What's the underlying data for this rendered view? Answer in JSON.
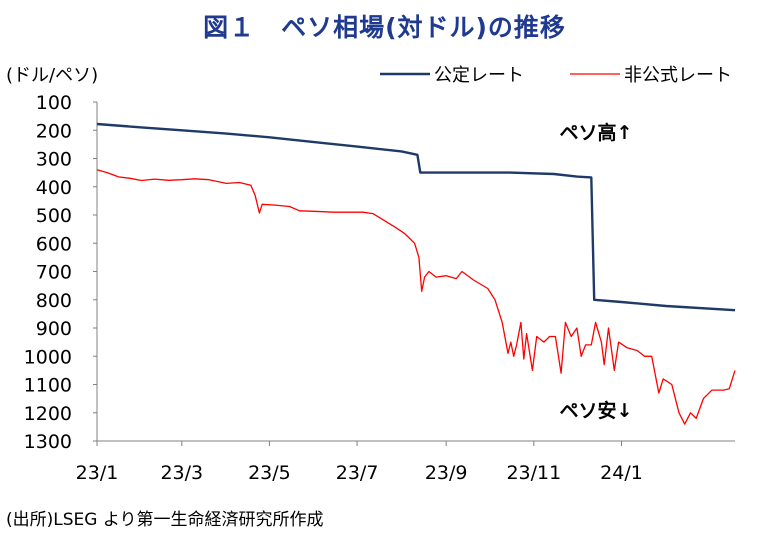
{
  "chart_data": {
    "type": "line",
    "title": "図１　ペソ相場(対ドル)の推移",
    "ylabel": "(ドル/ペソ)",
    "y_inverted": true,
    "ylim": [
      100,
      1300
    ],
    "yticks": [
      100,
      200,
      300,
      400,
      500,
      600,
      700,
      800,
      900,
      1000,
      1100,
      1200,
      1300
    ],
    "x_range": [
      "2023-01-01",
      "2024-03-20"
    ],
    "xticks": [
      {
        "label": "23/1",
        "date": "2023-01-01"
      },
      {
        "label": "23/3",
        "date": "2023-03-01"
      },
      {
        "label": "23/5",
        "date": "2023-05-01"
      },
      {
        "label": "23/7",
        "date": "2023-07-01"
      },
      {
        "label": "23/9",
        "date": "2023-09-01"
      },
      {
        "label": "23/11",
        "date": "2023-11-01"
      },
      {
        "label": "24/1",
        "date": "2024-01-01"
      }
    ],
    "grid": false,
    "legend_position": "top-right",
    "annotations": [
      {
        "text": "ペソ高↑",
        "position": "upper-right"
      },
      {
        "text": "ペソ安↓",
        "position": "lower-right"
      }
    ],
    "source_note": "(出所)LSEG より第一生命経済研究所作成",
    "series": [
      {
        "name": "公定レート",
        "color": "#1f3a68",
        "points": [
          [
            "2023-01-01",
            178
          ],
          [
            "2023-02-01",
            190
          ],
          [
            "2023-03-01",
            200
          ],
          [
            "2023-04-01",
            212
          ],
          [
            "2023-05-01",
            225
          ],
          [
            "2023-06-01",
            242
          ],
          [
            "2023-07-01",
            258
          ],
          [
            "2023-08-01",
            275
          ],
          [
            "2023-08-12",
            287
          ],
          [
            "2023-08-14",
            350
          ],
          [
            "2023-09-15",
            350
          ],
          [
            "2023-10-15",
            350
          ],
          [
            "2023-11-15",
            355
          ],
          [
            "2023-12-01",
            364
          ],
          [
            "2023-12-11",
            367
          ],
          [
            "2023-12-13",
            800
          ],
          [
            "2024-01-01",
            808
          ],
          [
            "2024-02-01",
            822
          ],
          [
            "2024-03-20",
            837
          ]
        ]
      },
      {
        "name": "非公式レート",
        "color": "#ff0000",
        "points": [
          [
            "2023-01-01",
            340
          ],
          [
            "2023-01-08",
            350
          ],
          [
            "2023-01-16",
            365
          ],
          [
            "2023-01-24",
            370
          ],
          [
            "2023-02-01",
            378
          ],
          [
            "2023-02-10",
            373
          ],
          [
            "2023-02-20",
            377
          ],
          [
            "2023-03-01",
            375
          ],
          [
            "2023-03-10",
            372
          ],
          [
            "2023-03-20",
            375
          ],
          [
            "2023-04-01",
            388
          ],
          [
            "2023-04-10",
            385
          ],
          [
            "2023-04-18",
            395
          ],
          [
            "2023-04-21",
            430
          ],
          [
            "2023-04-24",
            493
          ],
          [
            "2023-04-26",
            462
          ],
          [
            "2023-05-05",
            465
          ],
          [
            "2023-05-15",
            470
          ],
          [
            "2023-05-22",
            485
          ],
          [
            "2023-06-01",
            487
          ],
          [
            "2023-06-15",
            490
          ],
          [
            "2023-06-25",
            490
          ],
          [
            "2023-07-05",
            490
          ],
          [
            "2023-07-12",
            495
          ],
          [
            "2023-07-20",
            520
          ],
          [
            "2023-07-28",
            545
          ],
          [
            "2023-08-03",
            565
          ],
          [
            "2023-08-10",
            600
          ],
          [
            "2023-08-13",
            650
          ],
          [
            "2023-08-15",
            770
          ],
          [
            "2023-08-17",
            720
          ],
          [
            "2023-08-20",
            700
          ],
          [
            "2023-08-25",
            720
          ],
          [
            "2023-09-01",
            715
          ],
          [
            "2023-09-08",
            725
          ],
          [
            "2023-09-12",
            700
          ],
          [
            "2023-09-20",
            730
          ],
          [
            "2023-09-30",
            760
          ],
          [
            "2023-10-05",
            800
          ],
          [
            "2023-10-10",
            880
          ],
          [
            "2023-10-14",
            990
          ],
          [
            "2023-10-16",
            950
          ],
          [
            "2023-10-18",
            1000
          ],
          [
            "2023-10-20",
            960
          ],
          [
            "2023-10-23",
            880
          ],
          [
            "2023-10-25",
            1010
          ],
          [
            "2023-10-27",
            920
          ],
          [
            "2023-10-31",
            1050
          ],
          [
            "2023-11-03",
            930
          ],
          [
            "2023-11-08",
            950
          ],
          [
            "2023-11-12",
            930
          ],
          [
            "2023-11-16",
            930
          ],
          [
            "2023-11-20",
            1060
          ],
          [
            "2023-11-23",
            880
          ],
          [
            "2023-11-27",
            930
          ],
          [
            "2023-12-01",
            900
          ],
          [
            "2023-12-04",
            1000
          ],
          [
            "2023-12-07",
            960
          ],
          [
            "2023-12-11",
            960
          ],
          [
            "2023-12-14",
            880
          ],
          [
            "2023-12-18",
            950
          ],
          [
            "2023-12-20",
            1030
          ],
          [
            "2023-12-23",
            900
          ],
          [
            "2023-12-27",
            1050
          ],
          [
            "2023-12-30",
            950
          ],
          [
            "2024-01-05",
            970
          ],
          [
            "2024-01-12",
            980
          ],
          [
            "2024-01-17",
            1000
          ],
          [
            "2024-01-22",
            1000
          ],
          [
            "2024-01-27",
            1130
          ],
          [
            "2024-01-30",
            1080
          ],
          [
            "2024-02-05",
            1100
          ],
          [
            "2024-02-10",
            1200
          ],
          [
            "2024-02-14",
            1240
          ],
          [
            "2024-02-18",
            1200
          ],
          [
            "2024-02-22",
            1220
          ],
          [
            "2024-02-27",
            1150
          ],
          [
            "2024-03-04",
            1120
          ],
          [
            "2024-03-12",
            1120
          ],
          [
            "2024-03-16",
            1115
          ],
          [
            "2024-03-20",
            1050
          ]
        ]
      }
    ]
  }
}
